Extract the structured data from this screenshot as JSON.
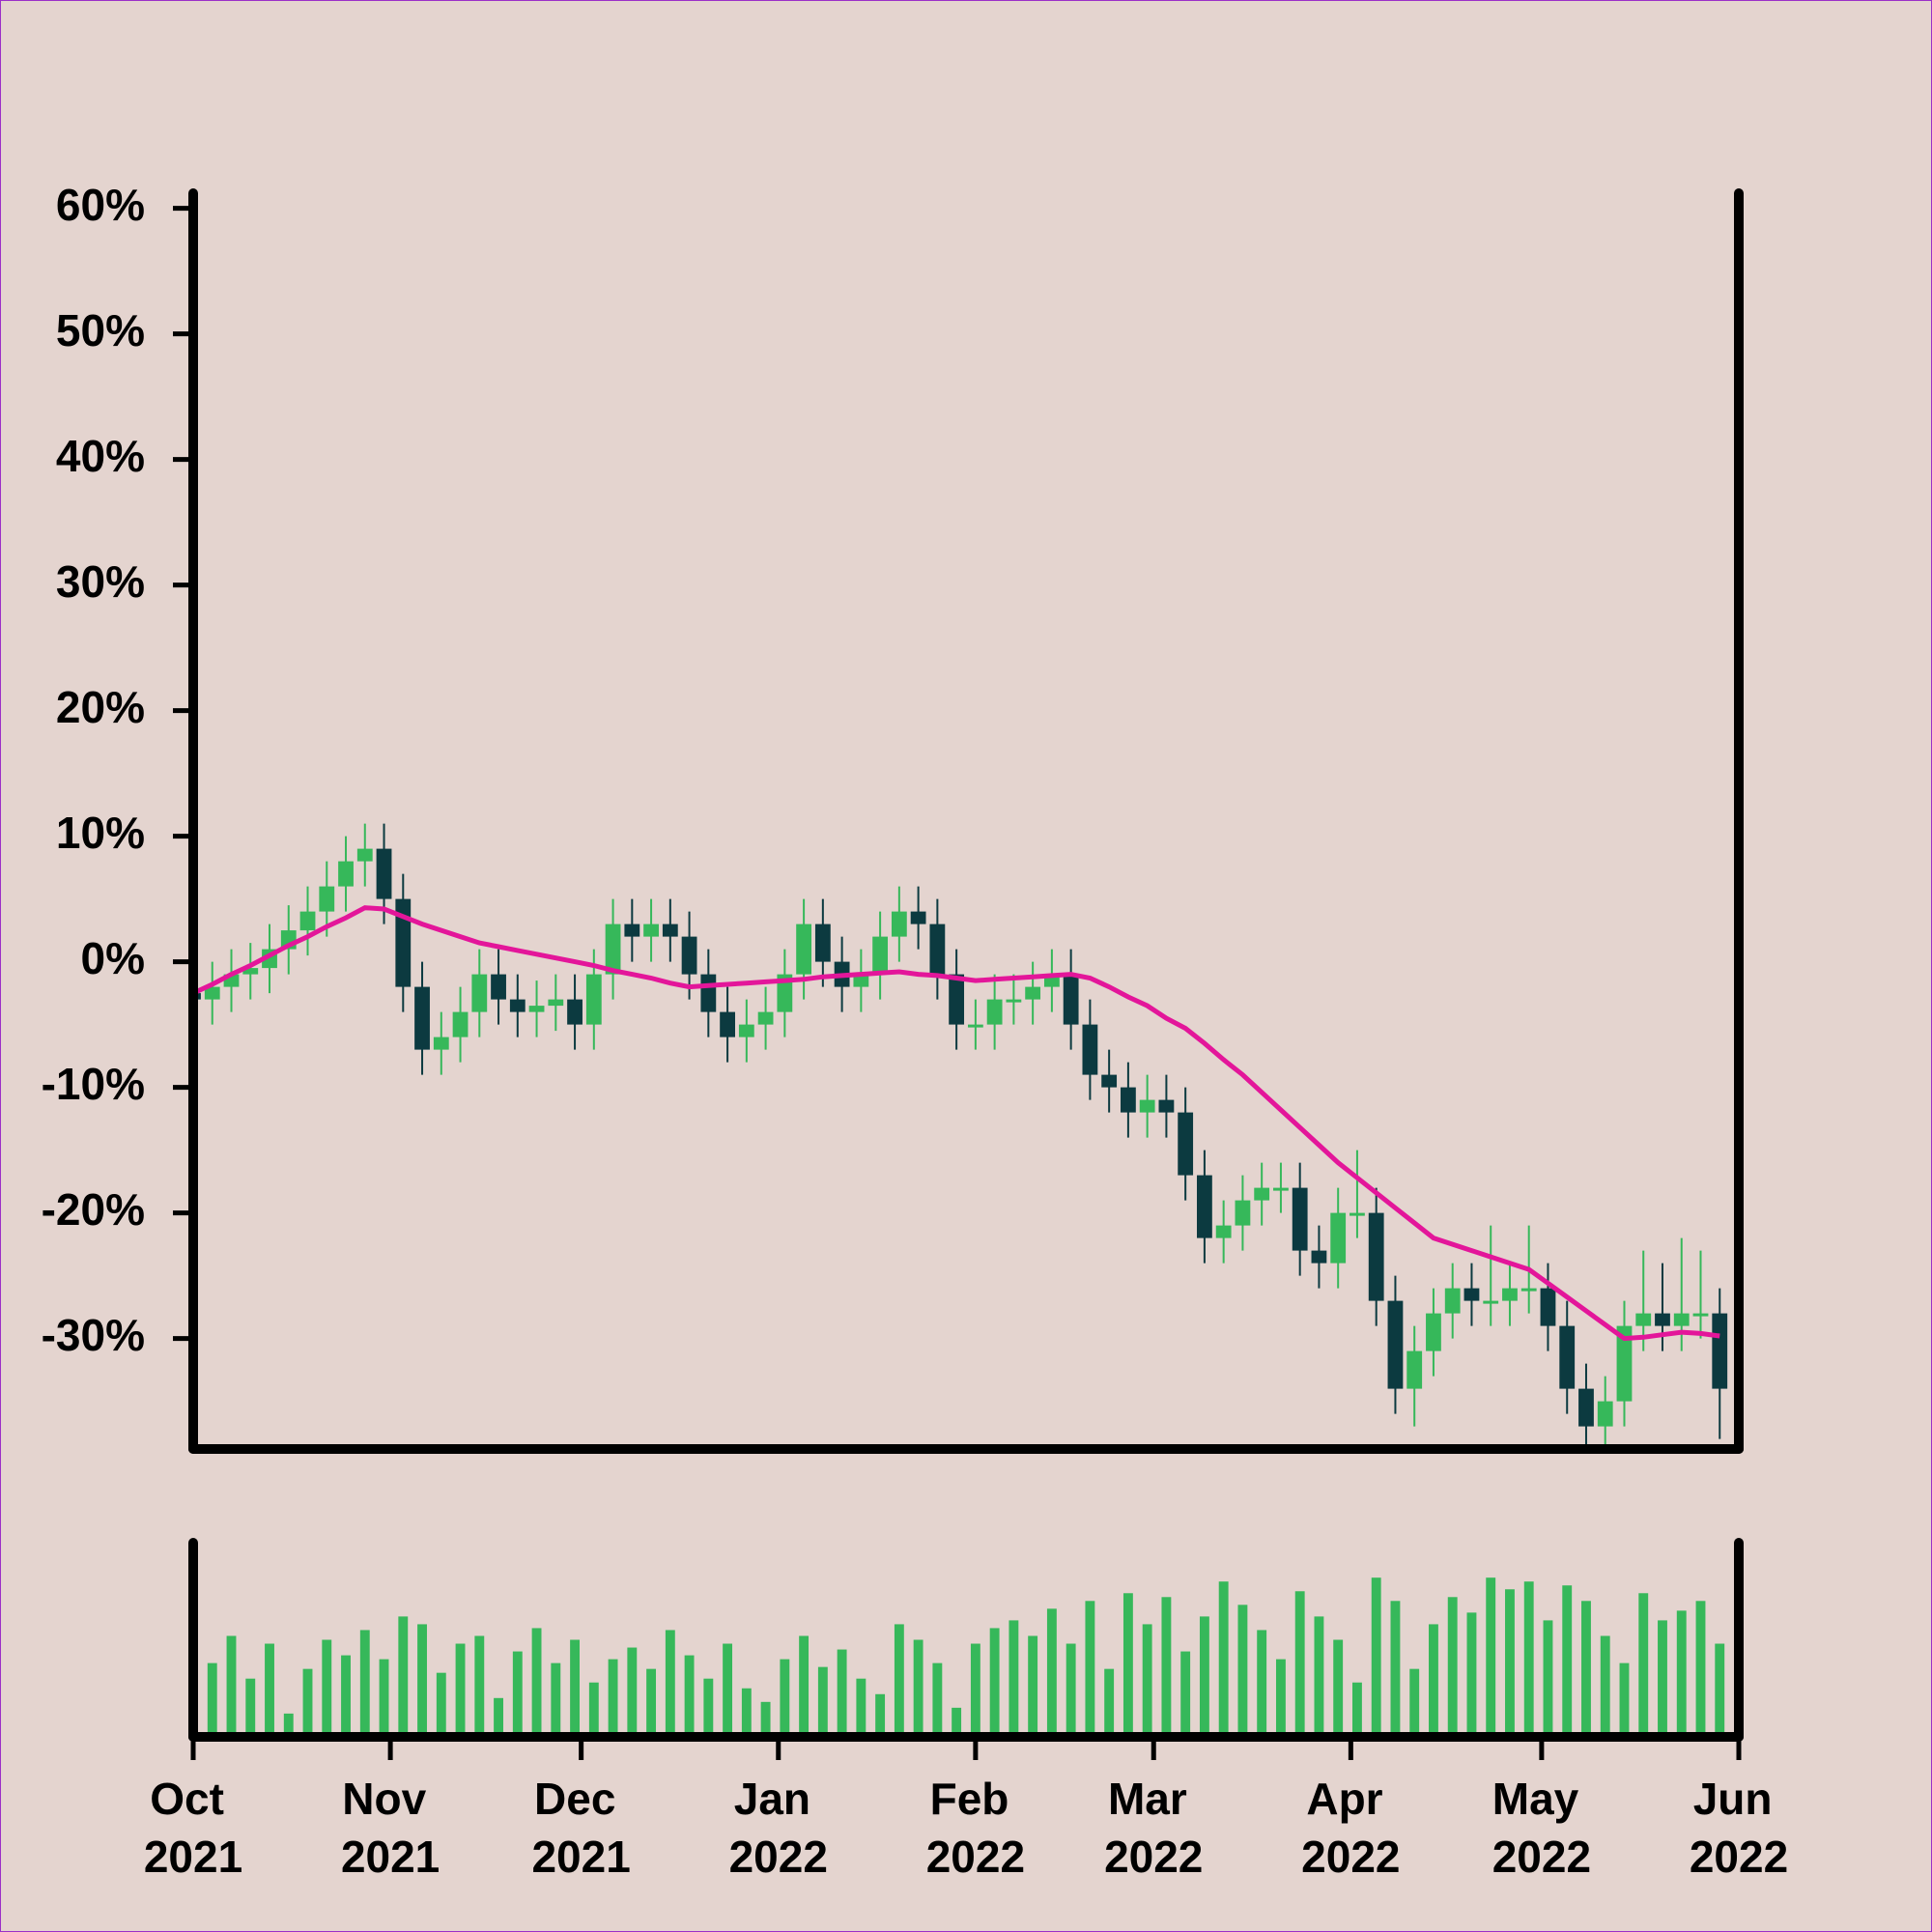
{
  "chart_data": {
    "type": "candlestick",
    "x": [
      0,
      3,
      6,
      9,
      12,
      15,
      18,
      21,
      24,
      27,
      30,
      33,
      36,
      39,
      42,
      45,
      48,
      51,
      54,
      57,
      60,
      63,
      66,
      69,
      72,
      75,
      78,
      81,
      84,
      87,
      90,
      93,
      96,
      99,
      102,
      105,
      108,
      111,
      114,
      117,
      120,
      123,
      126,
      129,
      132,
      135,
      138,
      141,
      144,
      147,
      150,
      153,
      156,
      159,
      162,
      165,
      168,
      171,
      174,
      177,
      180,
      183,
      186,
      189,
      192,
      195,
      198,
      201,
      204,
      207,
      210,
      213,
      216,
      219,
      222,
      225,
      228,
      231,
      234,
      237,
      240
    ],
    "ohlc": [
      [
        -2.5,
        -0.5,
        -5,
        -3
      ],
      [
        -3,
        0,
        -5,
        -2
      ],
      [
        -2,
        1,
        -4,
        -1
      ],
      [
        -1,
        1.5,
        -3,
        -0.5
      ],
      [
        -0.5,
        3,
        -2.5,
        1
      ],
      [
        1,
        4.5,
        -1,
        2.5
      ],
      [
        2.5,
        6,
        0.5,
        4
      ],
      [
        4,
        8,
        2,
        6
      ],
      [
        6,
        10,
        4,
        8
      ],
      [
        8,
        11,
        6,
        9
      ],
      [
        9,
        11,
        3,
        5
      ],
      [
        5,
        7,
        -4,
        -2
      ],
      [
        -2,
        0,
        -9,
        -7
      ],
      [
        -7,
        -4,
        -9,
        -6
      ],
      [
        -6,
        -2,
        -8,
        -4
      ],
      [
        -4,
        1,
        -6,
        -1
      ],
      [
        -1,
        1,
        -5,
        -3
      ],
      [
        -3,
        -1,
        -6,
        -4
      ],
      [
        -4,
        -1.5,
        -6,
        -3.5
      ],
      [
        -3.5,
        -1,
        -5.5,
        -3
      ],
      [
        -3,
        -1,
        -7,
        -5
      ],
      [
        -5,
        1,
        -7,
        -1
      ],
      [
        -1,
        5,
        -3,
        3
      ],
      [
        3,
        5,
        0,
        2
      ],
      [
        2,
        5,
        0,
        3
      ],
      [
        3,
        5,
        0,
        2
      ],
      [
        2,
        4,
        -3,
        -1
      ],
      [
        -1,
        1,
        -6,
        -4
      ],
      [
        -4,
        -2,
        -8,
        -6
      ],
      [
        -6,
        -3,
        -8,
        -5
      ],
      [
        -5,
        -2,
        -7,
        -4
      ],
      [
        -4,
        1,
        -6,
        -1
      ],
      [
        -1,
        5,
        -3,
        3
      ],
      [
        3,
        5,
        -2,
        0
      ],
      [
        0,
        2,
        -4,
        -2
      ],
      [
        -2,
        1,
        -4,
        -1
      ],
      [
        -1,
        4,
        -3,
        2
      ],
      [
        2,
        6,
        0,
        4
      ],
      [
        4,
        6,
        1,
        3
      ],
      [
        3,
        5,
        -3,
        -1
      ],
      [
        -1,
        1,
        -7,
        -5
      ],
      [
        -5,
        -3,
        -7,
        -5
      ],
      [
        -5,
        -1,
        -7,
        -3
      ],
      [
        -3,
        -1,
        -5,
        -3
      ],
      [
        -3,
        0,
        -5,
        -2
      ],
      [
        -2,
        1,
        -4,
        -1
      ],
      [
        -1,
        1,
        -7,
        -5
      ],
      [
        -5,
        -3,
        -11,
        -9
      ],
      [
        -9,
        -7,
        -12,
        -10
      ],
      [
        -10,
        -8,
        -14,
        -12
      ],
      [
        -12,
        -9,
        -14,
        -11
      ],
      [
        -11,
        -9,
        -14,
        -12
      ],
      [
        -12,
        -10,
        -19,
        -17
      ],
      [
        -17,
        -15,
        -24,
        -22
      ],
      [
        -22,
        -19,
        -24,
        -21
      ],
      [
        -21,
        -17,
        -23,
        -19
      ],
      [
        -19,
        -16,
        -21,
        -18
      ],
      [
        -18,
        -16,
        -20,
        -18
      ],
      [
        -18,
        -16,
        -25,
        -23
      ],
      [
        -23,
        -21,
        -26,
        -24
      ],
      [
        -24,
        -18,
        -26,
        -20
      ],
      [
        -20,
        -15,
        -22,
        -20
      ],
      [
        -20,
        -18,
        -29,
        -27
      ],
      [
        -27,
        -25,
        -36,
        -34
      ],
      [
        -34,
        -29,
        -37,
        -31
      ],
      [
        -31,
        -26,
        -33,
        -28
      ],
      [
        -28,
        -24,
        -30,
        -26
      ],
      [
        -26,
        -24,
        -29,
        -27
      ],
      [
        -27,
        -21,
        -29,
        -27
      ],
      [
        -27,
        -24,
        -29,
        -26
      ],
      [
        -26,
        -21,
        -28,
        -26
      ],
      [
        -26,
        -24,
        -31,
        -29
      ],
      [
        -29,
        -27,
        -36,
        -34
      ],
      [
        -34,
        -32,
        -39,
        -37
      ],
      [
        -37,
        -33,
        -39,
        -35
      ],
      [
        -35,
        -27,
        -37,
        -29
      ],
      [
        -29,
        -23,
        -31,
        -28
      ],
      [
        -28,
        -24,
        -31,
        -29
      ],
      [
        -29,
        -22,
        -31,
        -28
      ],
      [
        -28,
        -23,
        -30,
        -28
      ],
      [
        -28,
        -26,
        -38,
        -34
      ]
    ],
    "ma": {
      "color": "#e3169a",
      "values": [
        -2.5,
        -1.8,
        -1,
        -0.3,
        0.5,
        1.3,
        2,
        2.8,
        3.5,
        4.3,
        4.2,
        3.6,
        3,
        2.5,
        2,
        1.5,
        1.2,
        0.9,
        0.6,
        0.3,
        0,
        -0.3,
        -0.7,
        -1,
        -1.3,
        -1.7,
        -2,
        -1.9,
        -1.8,
        -1.7,
        -1.6,
        -1.5,
        -1.4,
        -1.2,
        -1.1,
        -1,
        -0.9,
        -0.8,
        -1,
        -1.1,
        -1.3,
        -1.5,
        -1.4,
        -1.3,
        -1.2,
        -1.1,
        -1,
        -1.3,
        -2,
        -2.8,
        -3.5,
        -4.5,
        -5.3,
        -6.5,
        -7.8,
        -9,
        -10.4,
        -11.8,
        -13.2,
        -14.6,
        -16,
        -17.2,
        -18.4,
        -19.6,
        -20.8,
        -22,
        -22.5,
        -23,
        -23.5,
        -24,
        -24.5,
        -25.6,
        -26.7,
        -27.8,
        -28.9,
        -30,
        -29.9,
        -29.7,
        -29.5,
        -29.6,
        -29.8
      ]
    },
    "volume": {
      "color": "#36b85a",
      "values": [
        45,
        38,
        52,
        30,
        48,
        12,
        35,
        50,
        42,
        55,
        40,
        62,
        58,
        33,
        48,
        52,
        20,
        44,
        56,
        38,
        50,
        28,
        40,
        46,
        35,
        55,
        42,
        30,
        48,
        25,
        18,
        40,
        52,
        36,
        45,
        30,
        22,
        58,
        50,
        38,
        15,
        48,
        56,
        60,
        52,
        66,
        48,
        70,
        35,
        74,
        58,
        72,
        44,
        62,
        80,
        68,
        55,
        40,
        75,
        62,
        50,
        28,
        82,
        70,
        35,
        58,
        72,
        64,
        82,
        76,
        80,
        60,
        78,
        70,
        52,
        38,
        74,
        60,
        65,
        70,
        48
      ],
      "vlim": [
        0,
        100
      ]
    },
    "up_color": "#36b85a",
    "down_color": "#0c3a40",
    "xlim": [
      0,
      243
    ],
    "xticks": [
      {
        "value": 0,
        "label": "Oct 2021"
      },
      {
        "value": 31,
        "label": "Nov 2021"
      },
      {
        "value": 61,
        "label": "Dec 2021"
      },
      {
        "value": 92,
        "label": "Jan 2022"
      },
      {
        "value": 123,
        "label": "Feb 2022"
      },
      {
        "value": 151,
        "label": "Mar 2022"
      },
      {
        "value": 182,
        "label": "Apr 2022"
      },
      {
        "value": 212,
        "label": "May 2022"
      },
      {
        "value": 243,
        "label": "Jun 2022"
      }
    ],
    "ylim": [
      -38.8,
      61.2
    ],
    "yticks": [
      {
        "value": 60,
        "label": "60%"
      },
      {
        "value": 50,
        "label": "50%"
      },
      {
        "value": 40,
        "label": "40%"
      },
      {
        "value": 30,
        "label": "30%"
      },
      {
        "value": 20,
        "label": "20%"
      },
      {
        "value": 10,
        "label": "10%"
      },
      {
        "value": 0,
        "label": "0%"
      },
      {
        "value": -10,
        "label": "-10%"
      },
      {
        "value": -20,
        "label": "-20%"
      },
      {
        "value": -30,
        "label": "-30%"
      }
    ]
  }
}
